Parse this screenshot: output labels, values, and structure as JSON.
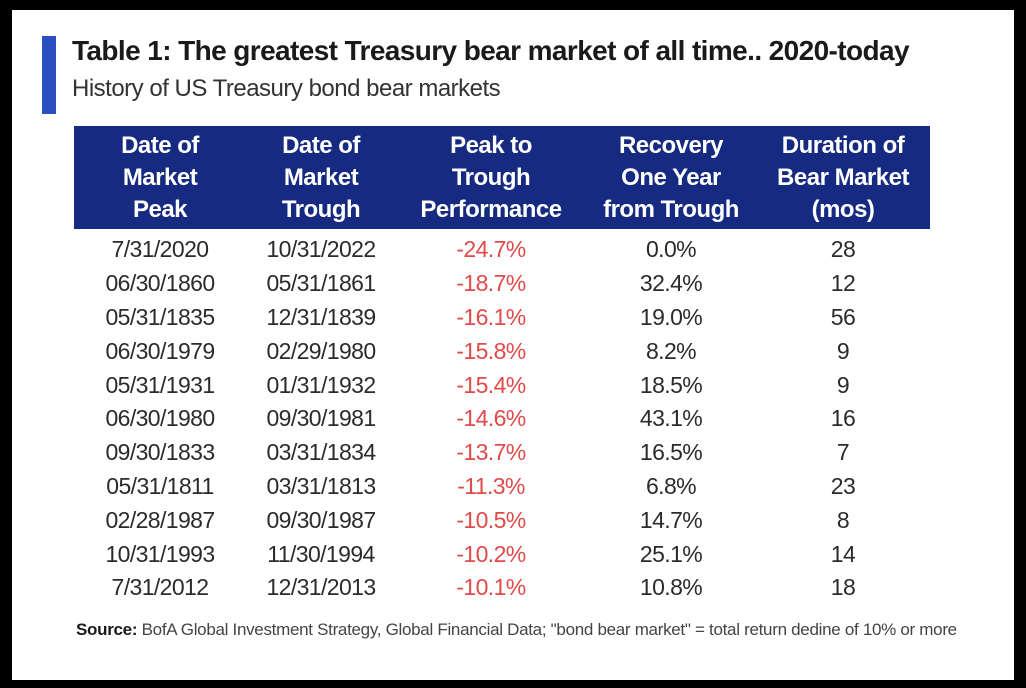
{
  "header": {
    "title": "Table 1: The greatest Treasury bear market of all time.. 2020-today",
    "subtitle": "History of US Treasury bond bear markets",
    "accent_color": "#2a4fc0"
  },
  "chart_data": {
    "type": "table",
    "header_color": "#152a80",
    "negative_color": "#e04a4a",
    "columns": [
      "Date of\nMarket\nPeak",
      "Date of\nMarket\nTrough",
      "Peak to\nTrough\nPerformance",
      "Recovery\nOne Year\nfrom Trough",
      "Duration of\nBear Market\n(mos)"
    ],
    "rows": [
      [
        "7/31/2020",
        "10/31/2022",
        "-24.7%",
        "0.0%",
        "28"
      ],
      [
        "06/30/1860",
        "05/31/1861",
        "-18.7%",
        "32.4%",
        "12"
      ],
      [
        "05/31/1835",
        "12/31/1839",
        "-16.1%",
        "19.0%",
        "56"
      ],
      [
        "06/30/1979",
        "02/29/1980",
        "-15.8%",
        "8.2%",
        "9"
      ],
      [
        "05/31/1931",
        "01/31/1932",
        "-15.4%",
        "18.5%",
        "9"
      ],
      [
        "06/30/1980",
        "09/30/1981",
        "-14.6%",
        "43.1%",
        "16"
      ],
      [
        "09/30/1833",
        "03/31/1834",
        "-13.7%",
        "16.5%",
        "7"
      ],
      [
        "05/31/1811",
        "03/31/1813",
        "-11.3%",
        "6.8%",
        "23"
      ],
      [
        "02/28/1987",
        "09/30/1987",
        "-10.5%",
        "14.7%",
        "8"
      ],
      [
        "10/31/1993",
        "11/30/1994",
        "-10.2%",
        "25.1%",
        "14"
      ],
      [
        "7/31/2012",
        "12/31/2013",
        "-10.1%",
        "10.8%",
        "18"
      ]
    ]
  },
  "footer": {
    "source_label": "Source:",
    "source_text": " BofA Global Investment Strategy, Global Financial Data; \"bond bear market\" = total return dedine of 10% or more"
  }
}
